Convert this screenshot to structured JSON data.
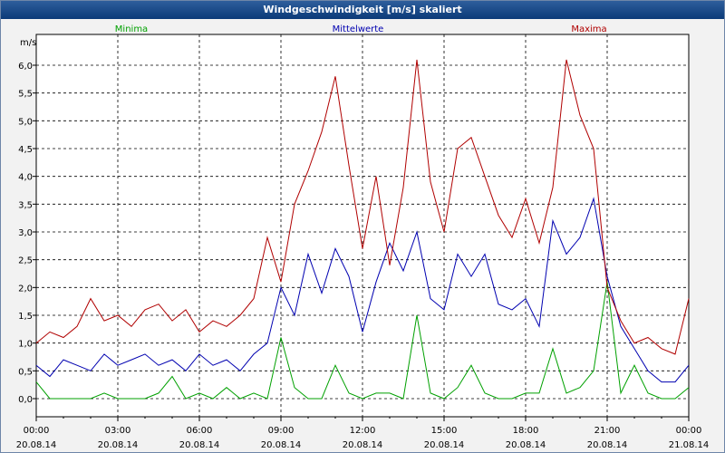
{
  "window": {
    "title": "Windgeschwindigkeit [m/s] skaliert"
  },
  "chart_data": {
    "type": "line",
    "title": "Windgeschwindigkeit [m/s] skaliert",
    "ylabel": "m/s",
    "xlabel": "",
    "ylim": [
      -0.2,
      6.4
    ],
    "xlim_hours": [
      0,
      24
    ],
    "grid": true,
    "legend_placement": "top",
    "y_ticks": [
      "0,0",
      "0,5",
      "1,0",
      "1,5",
      "2,0",
      "2,5",
      "3,0",
      "3,5",
      "4,0",
      "4,5",
      "5,0",
      "5,5",
      "6,0"
    ],
    "x_ticks": [
      {
        "time": "00:00",
        "date": "20.08.14"
      },
      {
        "time": "03:00",
        "date": "20.08.14"
      },
      {
        "time": "06:00",
        "date": "20.08.14"
      },
      {
        "time": "09:00",
        "date": "20.08.14"
      },
      {
        "time": "12:00",
        "date": "20.08.14"
      },
      {
        "time": "15:00",
        "date": "20.08.14"
      },
      {
        "time": "18:00",
        "date": "20.08.14"
      },
      {
        "time": "21:00",
        "date": "20.08.14"
      },
      {
        "time": "00:00",
        "date": "21.08.14"
      }
    ],
    "x_hours": [
      0,
      0.5,
      1,
      1.5,
      2,
      2.5,
      3,
      3.5,
      4,
      4.5,
      5,
      5.5,
      6,
      6.5,
      7,
      7.5,
      8,
      8.5,
      9,
      9.5,
      10,
      10.5,
      11,
      11.5,
      12,
      12.5,
      13,
      13.5,
      14,
      14.5,
      15,
      15.5,
      16,
      16.5,
      17,
      17.5,
      18,
      18.5,
      19,
      19.5,
      20,
      20.5,
      21,
      21.5,
      22,
      22.5,
      23,
      23.5,
      24
    ],
    "series": [
      {
        "name": "Minima",
        "color": "#00a000",
        "values": [
          0.3,
          0.0,
          0.0,
          0.0,
          0.0,
          0.1,
          0.0,
          0.0,
          0.0,
          0.1,
          0.4,
          0.0,
          0.1,
          0.0,
          0.2,
          0.0,
          0.1,
          0.0,
          1.1,
          0.2,
          0.0,
          0.0,
          0.6,
          0.1,
          0.0,
          0.1,
          0.1,
          0.0,
          1.5,
          0.1,
          0.0,
          0.2,
          0.6,
          0.1,
          0.0,
          0.0,
          0.1,
          0.1,
          0.9,
          0.1,
          0.2,
          0.5,
          2.1,
          0.1,
          0.6,
          0.1,
          0.0,
          0.0,
          0.2
        ]
      },
      {
        "name": "Mittelwerte",
        "color": "#0000b0",
        "values": [
          0.6,
          0.4,
          0.7,
          0.6,
          0.5,
          0.8,
          0.6,
          0.7,
          0.8,
          0.6,
          0.7,
          0.5,
          0.8,
          0.6,
          0.7,
          0.5,
          0.8,
          1.0,
          2.0,
          1.5,
          2.6,
          1.9,
          2.7,
          2.2,
          1.2,
          2.1,
          2.8,
          2.3,
          3.0,
          1.8,
          1.6,
          2.6,
          2.2,
          2.6,
          1.7,
          1.6,
          1.8,
          1.3,
          3.2,
          2.6,
          2.9,
          3.6,
          2.2,
          1.3,
          0.9,
          0.5,
          0.3,
          0.3,
          0.6
        ]
      },
      {
        "name": "Maxima",
        "color": "#b00000",
        "values": [
          1.0,
          1.2,
          1.1,
          1.3,
          1.8,
          1.4,
          1.5,
          1.3,
          1.6,
          1.7,
          1.4,
          1.6,
          1.2,
          1.4,
          1.3,
          1.5,
          1.8,
          2.9,
          2.1,
          3.5,
          4.1,
          4.8,
          5.8,
          4.2,
          2.7,
          4.0,
          2.4,
          3.8,
          6.1,
          3.9,
          3.0,
          4.5,
          4.7,
          4.0,
          3.3,
          2.9,
          3.6,
          2.8,
          3.8,
          6.1,
          5.1,
          4.5,
          2.0,
          1.4,
          1.0,
          1.1,
          0.9,
          0.8,
          1.8
        ]
      }
    ]
  }
}
